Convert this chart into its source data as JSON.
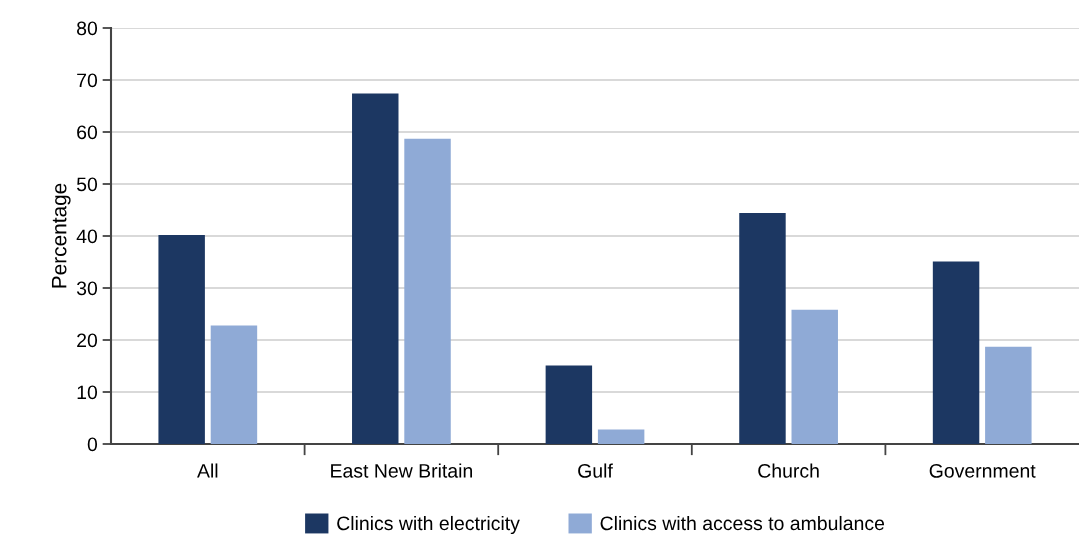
{
  "chart_data": {
    "type": "bar",
    "ylabel": "Percentage",
    "categories": [
      "All",
      "East New Britain",
      "Gulf",
      "Church",
      "Government"
    ],
    "series": [
      {
        "name": "Clinics with electricity",
        "color": "#1c3762",
        "values": [
          40.2,
          67.4,
          15.1,
          44.4,
          35.1
        ]
      },
      {
        "name": "Clinics with access to ambulance",
        "color": "#8faad6",
        "values": [
          22.8,
          58.7,
          2.8,
          25.8,
          18.7
        ]
      }
    ],
    "ylim": [
      0,
      80
    ],
    "yticks": [
      0,
      10,
      20,
      30,
      40,
      50,
      60,
      70,
      80
    ],
    "grid": "y",
    "legend": "bottom"
  }
}
